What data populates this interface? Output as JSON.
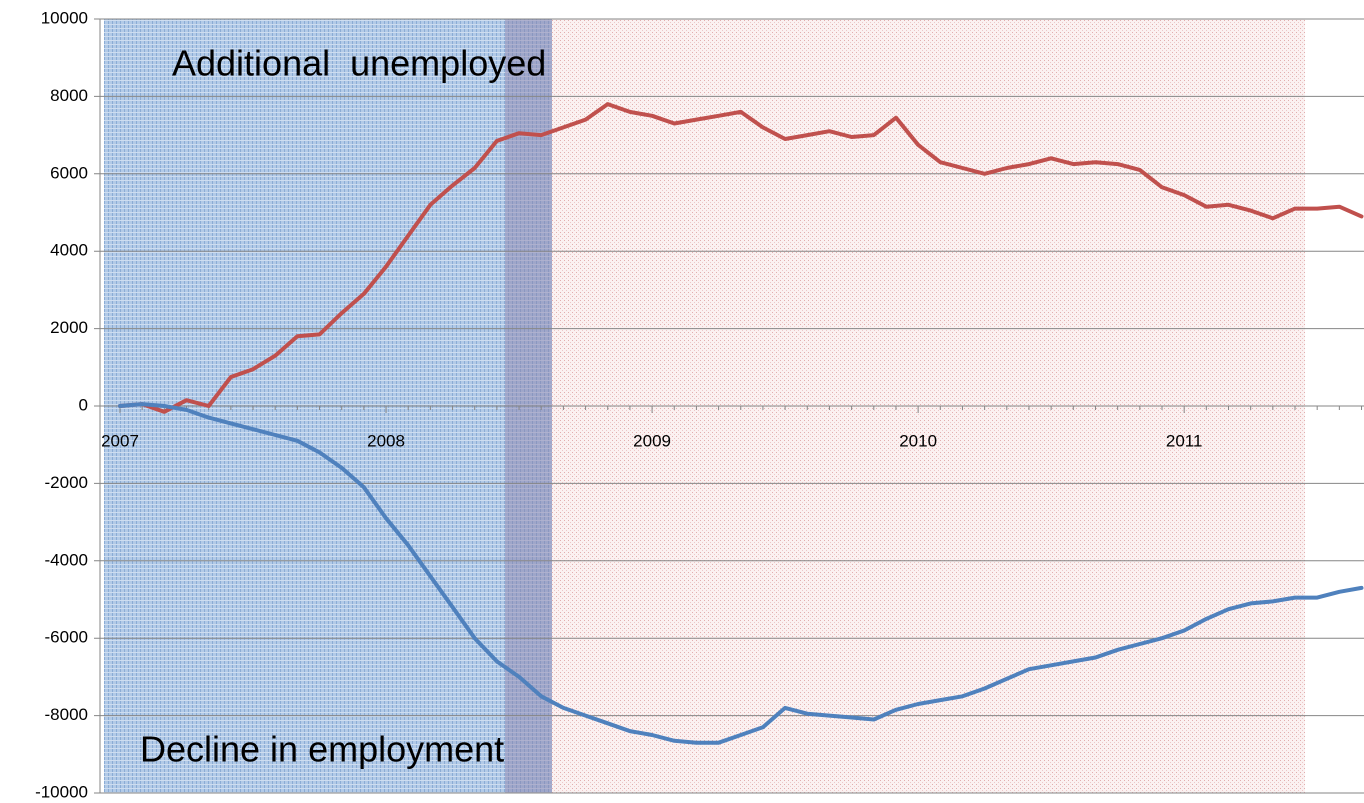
{
  "chart_data": {
    "type": "line",
    "categories": [
      "2007",
      null,
      null,
      null,
      null,
      null,
      null,
      null,
      null,
      null,
      null,
      null,
      "2008",
      null,
      null,
      null,
      null,
      null,
      null,
      null,
      null,
      null,
      null,
      null,
      "2009",
      null,
      null,
      null,
      null,
      null,
      null,
      null,
      null,
      null,
      null,
      null,
      "2010",
      null,
      null,
      null,
      null,
      null,
      null,
      null,
      null,
      null,
      null,
      null,
      "2011",
      null,
      null,
      null,
      null,
      null,
      null,
      null,
      null
    ],
    "series": [
      {
        "color": "#c0504d",
        "values": [
          0,
          50,
          -150,
          150,
          0,
          750,
          950,
          1300,
          1800,
          1850,
          2400,
          2900,
          3600,
          4400,
          5200,
          5700,
          6150,
          6850,
          7050,
          7000,
          7200,
          7400,
          7800,
          7600,
          7500,
          7300,
          7400,
          7500,
          7600,
          7200,
          6900,
          7000,
          7100,
          6950,
          7000,
          7450,
          6750,
          6300,
          6150,
          6000,
          6150,
          6250,
          6400,
          6250,
          6300,
          6250,
          6100,
          5650,
          5450,
          5150,
          5200,
          5050,
          4850,
          5100,
          5100,
          5150,
          4900
        ]
      },
      {
        "color": "#4f81bd",
        "values": [
          0,
          50,
          0,
          -100,
          -300,
          -450,
          -600,
          -750,
          -900,
          -1200,
          -1600,
          -2100,
          -2900,
          -3600,
          -4400,
          -5200,
          -6000,
          -6600,
          -7000,
          -7500,
          -7800,
          -8000,
          -8200,
          -8400,
          -8500,
          -8650,
          -8700,
          -8700,
          -8500,
          -8300,
          -7800,
          -7950,
          -8000,
          -8050,
          -8100,
          -7850,
          -7700,
          -7600,
          -7500,
          -7300,
          -7050,
          -6800,
          -6700,
          -6600,
          -6500,
          -6300,
          -6150,
          -6000,
          -5800,
          -5500,
          -5250,
          -5100,
          -5050,
          -4950,
          -4950,
          -4800,
          -4700
        ]
      }
    ],
    "ylim": [
      -10000,
      10000
    ],
    "yticks": [
      -10000,
      -8000,
      -6000,
      -4000,
      -2000,
      0,
      2000,
      4000,
      6000,
      8000,
      10000
    ],
    "grid": true,
    "annotations": [
      "Additional  unemployed",
      "Decline in employment"
    ]
  }
}
